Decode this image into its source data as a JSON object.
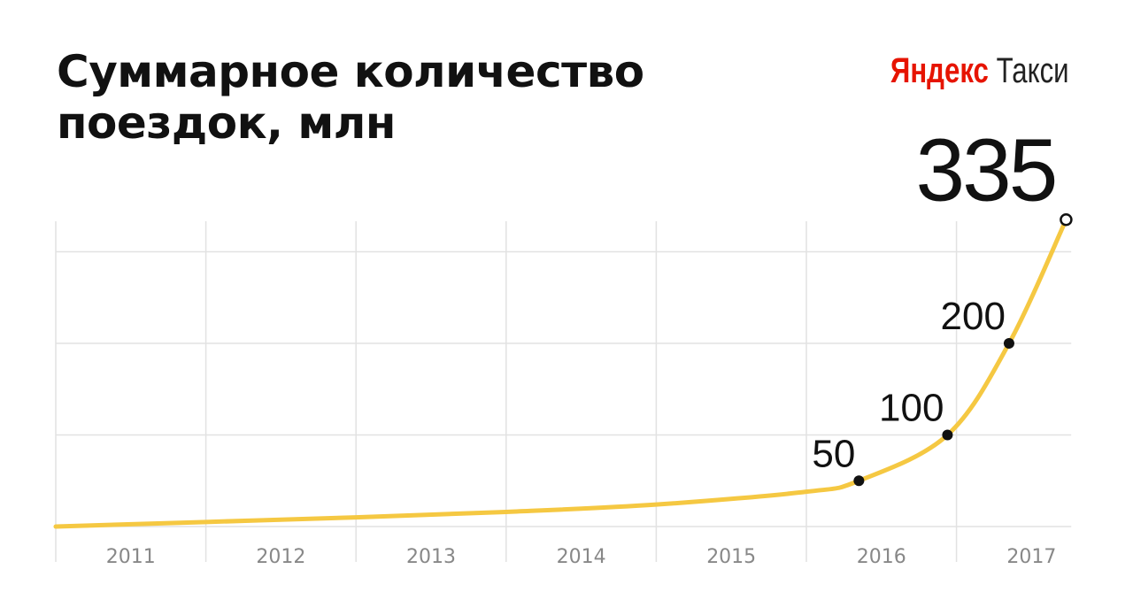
{
  "logo": {
    "brand": "Яндекс",
    "product": "Такси"
  },
  "chart_data": {
    "type": "line",
    "title": "Суммарное количество поездок, млн",
    "xlim": [
      2011,
      2018
    ],
    "xticks": [
      2011,
      2012,
      2013,
      2014,
      2015,
      2016,
      2017
    ],
    "ylim": [
      0,
      335
    ],
    "yticks": [
      0,
      100,
      200,
      300
    ],
    "grid": true,
    "series": [
      {
        "color": "#f5c842",
        "x": [
          2011,
          2012,
          2013,
          2014,
          2015,
          2016,
          2016.35,
          2016.94,
          2017.35,
          2017.73
        ],
        "values": [
          0,
          5,
          10,
          16,
          24,
          38,
          50,
          100,
          200,
          335
        ],
        "markers": [
          null,
          null,
          null,
          null,
          null,
          null,
          "dot",
          "dot",
          "dot",
          "ring"
        ]
      }
    ]
  }
}
